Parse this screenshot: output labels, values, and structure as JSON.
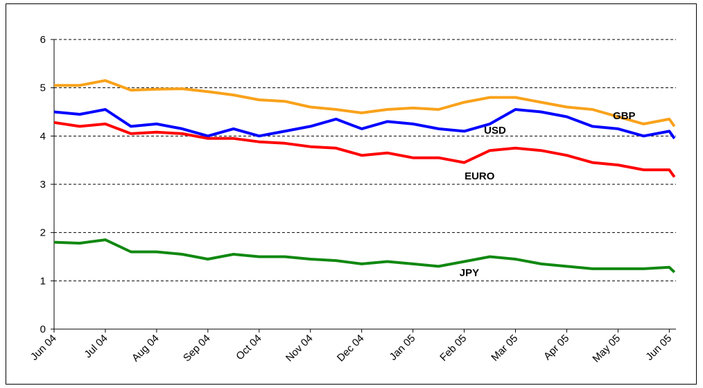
{
  "chart_data": {
    "type": "line",
    "x": [
      0,
      0.5,
      1,
      1.5,
      2,
      2.5,
      3,
      3.5,
      4,
      4.5,
      5,
      5.5,
      6,
      6.5,
      7,
      7.5,
      8,
      8.5,
      9,
      9.5,
      10,
      10.5,
      11,
      11.5,
      12,
      12.1
    ],
    "series": [
      {
        "name": "GBP",
        "color": "#f9a21b",
        "values": [
          5.05,
          5.05,
          5.15,
          4.95,
          4.97,
          4.98,
          4.92,
          4.85,
          4.75,
          4.72,
          4.6,
          4.55,
          4.48,
          4.55,
          4.58,
          4.55,
          4.7,
          4.8,
          4.8,
          4.7,
          4.6,
          4.55,
          4.4,
          4.25,
          4.35,
          4.2
        ]
      },
      {
        "name": "USD",
        "color": "#0000ff",
        "values": [
          4.5,
          4.45,
          4.55,
          4.2,
          4.25,
          4.15,
          4.0,
          4.15,
          4.0,
          4.1,
          4.2,
          4.35,
          4.15,
          4.3,
          4.25,
          4.15,
          4.1,
          4.25,
          4.55,
          4.5,
          4.4,
          4.2,
          4.15,
          4.0,
          4.1,
          3.95
        ]
      },
      {
        "name": "EURO",
        "color": "#ff0000",
        "values": [
          4.28,
          4.2,
          4.25,
          4.05,
          4.08,
          4.05,
          3.95,
          3.95,
          3.88,
          3.85,
          3.78,
          3.75,
          3.6,
          3.65,
          3.55,
          3.55,
          3.45,
          3.7,
          3.75,
          3.7,
          3.6,
          3.45,
          3.4,
          3.3,
          3.3,
          3.15
        ]
      },
      {
        "name": "JPY",
        "color": "#118811",
        "values": [
          1.8,
          1.78,
          1.85,
          1.6,
          1.6,
          1.55,
          1.45,
          1.55,
          1.5,
          1.5,
          1.45,
          1.42,
          1.35,
          1.4,
          1.35,
          1.3,
          1.4,
          1.5,
          1.45,
          1.35,
          1.3,
          1.25,
          1.25,
          1.25,
          1.28,
          1.18
        ]
      }
    ],
    "xlim": [
      0,
      12.13
    ],
    "xticks": [
      {
        "value": 0,
        "label": "Jun 04"
      },
      {
        "value": 1,
        "label": "Jul 04"
      },
      {
        "value": 2,
        "label": "Aug 04"
      },
      {
        "value": 3,
        "label": "Sep 04"
      },
      {
        "value": 4,
        "label": "Oct 04"
      },
      {
        "value": 5,
        "label": "Nov 04"
      },
      {
        "value": 6,
        "label": "Dec 04"
      },
      {
        "value": 7,
        "label": "Jan 05"
      },
      {
        "value": 8,
        "label": "Feb 05"
      },
      {
        "value": 9,
        "label": "Mar 05"
      },
      {
        "value": 10,
        "label": "Apr 05"
      },
      {
        "value": 11,
        "label": "May 05"
      },
      {
        "value": 12,
        "label": "Jun 05"
      }
    ],
    "ylim": [
      0,
      6
    ],
    "yticks": [
      0,
      1,
      2,
      3,
      4,
      5,
      6
    ],
    "grid": true
  }
}
